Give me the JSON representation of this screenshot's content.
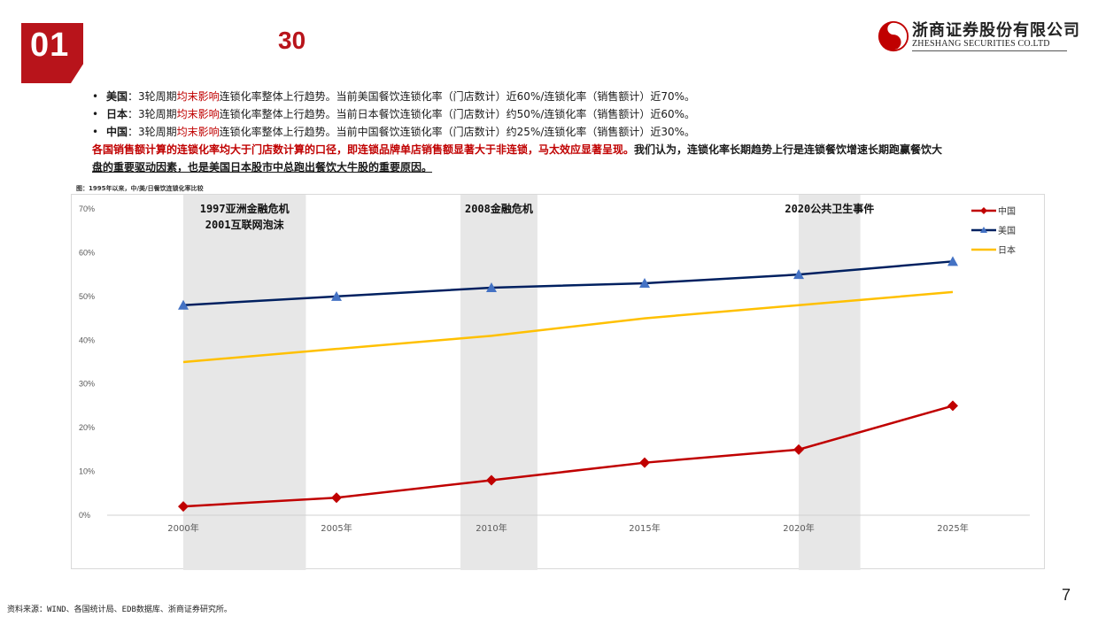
{
  "header": {
    "section_number": "01",
    "section_title": "30",
    "logo_cn": "浙商证券股份有限公司",
    "logo_en": "ZHESHANG SECURITIES CO.LTD"
  },
  "bullets": [
    {
      "bullet": "•",
      "country": "美国",
      "pre": "：3轮周期",
      "highlight": "均末影响",
      "post": "连锁化率整体上行趋势。当前美国餐饮连锁化率（门店数计）近60%/连锁化率（销售额计）近70%。"
    },
    {
      "bullet": "•",
      "country": "日本",
      "pre": "：3轮周期",
      "highlight": "均末影响",
      "post": "连锁化率整体上行趋势。当前日本餐饮连锁化率（门店数计）约50%/连锁化率（销售额计）近60%。"
    },
    {
      "bullet": "•",
      "country": "中国",
      "pre": "：3轮周期",
      "highlight": "均末影响",
      "post": "连锁化率整体上行趋势。当前中国餐饮连锁化率（门店数计）约25%/连锁化率（销售额计）近30%。"
    }
  ],
  "summary": {
    "red_part": "各国销售额计算的连锁化率均大于门店数计算的口径，即连锁品牌单店销售额显著大于非连锁，马太效应显著呈现。",
    "black_part": "我们认为，连锁化率长期趋势上行是连锁餐饮增速长期跑赢餐饮大",
    "line2": "盘的重要驱动因素，也是美国日本股市中总跑出餐饮大牛股的重要原因。"
  },
  "figure_label": "图：1995年以来，中/美/日餐饮连锁化率比较",
  "chart_data": {
    "type": "line",
    "categories": [
      "2000年",
      "2005年",
      "2010年",
      "2015年",
      "2020年",
      "2025年"
    ],
    "series": [
      {
        "name": "中国",
        "values": [
          2,
          4,
          8,
          12,
          15,
          25
        ],
        "color": "#c00000",
        "marker": "diamond"
      },
      {
        "name": "美国",
        "values": [
          48,
          50,
          52,
          53,
          55,
          58
        ],
        "color": "#002060",
        "marker": "triangle"
      },
      {
        "name": "日本",
        "values": [
          35,
          38,
          41,
          45,
          48,
          51
        ],
        "color": "#ffc000",
        "marker": "none"
      }
    ],
    "ylim": [
      0,
      70
    ],
    "yticks": [
      "0%",
      "10%",
      "20%",
      "30%",
      "40%",
      "50%",
      "60%",
      "70%"
    ],
    "ytick_values": [
      0,
      10,
      20,
      30,
      40,
      50,
      60,
      70
    ],
    "shaded_periods": [
      {
        "lines": [
          "1997亚洲金融危机",
          "2001互联网泡沫"
        ],
        "from": 2000,
        "to": 2004
      },
      {
        "lines": [
          "2008金融危机"
        ],
        "from": 2009,
        "to": 2011.5
      },
      {
        "lines": [
          "2020公共卫生事件"
        ],
        "from": 2020,
        "to": 2022
      }
    ],
    "legend_position": "top-right",
    "grid": false
  },
  "source_note": "资料来源：WIND、各国统计局、EDB数据库、浙商证券研究所。",
  "page_number": "7",
  "colors": {
    "brand_red": "#b8141b",
    "band_gray": "#e7e7e7"
  }
}
